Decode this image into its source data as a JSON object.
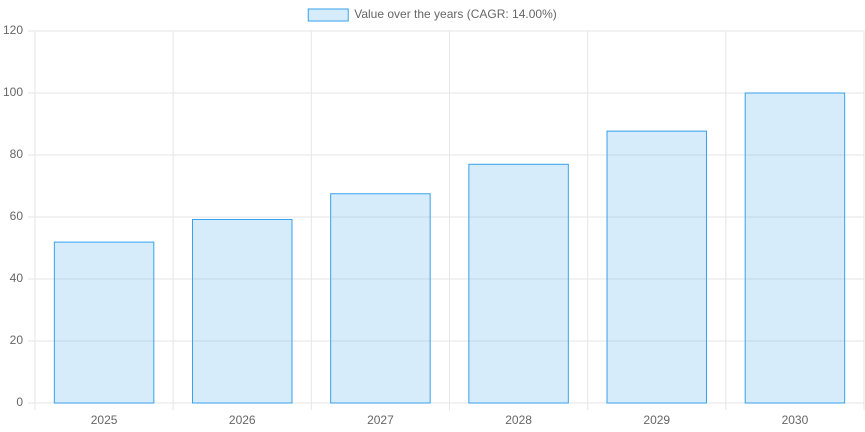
{
  "chart_data": {
    "type": "bar",
    "categories": [
      "2025",
      "2026",
      "2027",
      "2028",
      "2029",
      "2030"
    ],
    "series": [
      {
        "name": "Value over the years (CAGR: 14.00%)",
        "color": "#36a2eb",
        "values": [
          51.9,
          59.2,
          67.5,
          77.0,
          87.7,
          100
        ]
      }
    ],
    "ylim": [
      0,
      120
    ],
    "yticks": [
      0,
      20,
      40,
      60,
      80,
      100,
      120
    ],
    "grid": true,
    "legend": "top"
  }
}
